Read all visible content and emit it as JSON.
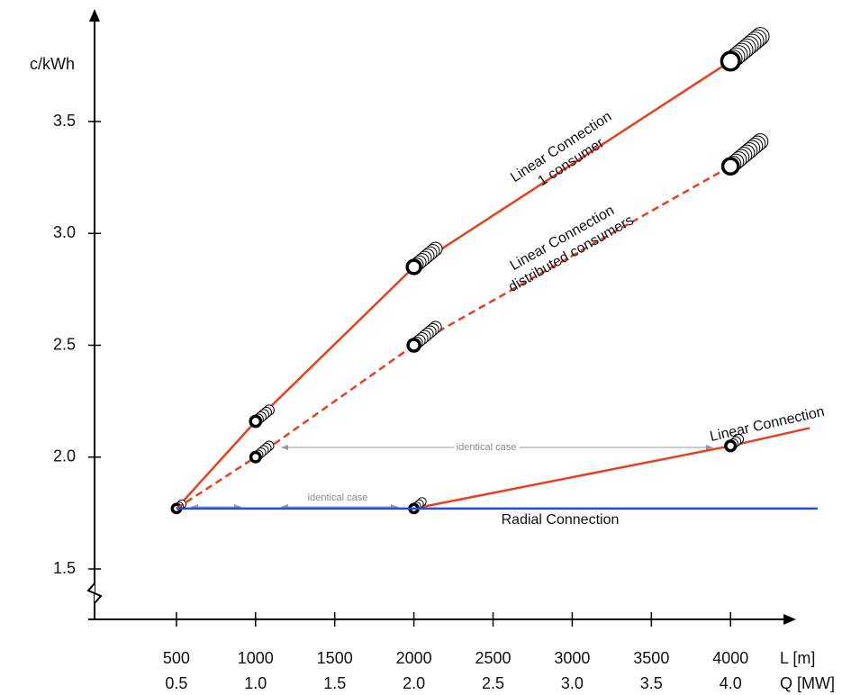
{
  "chart_data": {
    "type": "line",
    "y_label": "c/kWh",
    "x_label": "L  [m]",
    "x2_label": "Q [MW]",
    "xlim": [
      0,
      4600
    ],
    "ylim": [
      1.3,
      4.0
    ],
    "xticks": [
      500,
      1000,
      1500,
      2000,
      2500,
      3000,
      3500,
      4000
    ],
    "x2lim": [
      0,
      4.6
    ],
    "x2ticks": [
      0.5,
      {
        "value": 1,
        "label": "1.0"
      },
      1.5,
      {
        "value": 2,
        "label": "2.0"
      },
      2.5,
      {
        "value": 3,
        "label": "3.0"
      },
      3.5,
      {
        "value": 4,
        "label": "4.0"
      }
    ],
    "yticks": [
      1.5,
      {
        "value": 2,
        "label": "2.0"
      },
      2.5,
      {
        "value": 3,
        "label": "3.0"
      },
      3.5
    ],
    "series": [
      {
        "name_lines": [
          "Linear Connection",
          "1 consumer"
        ],
        "color": "#e8401c",
        "dash": false,
        "x": [
          500,
          1000,
          2000,
          4000
        ],
        "values": [
          1.77,
          2.16,
          2.85,
          3.77
        ]
      },
      {
        "name_lines": [
          "Linear Connection",
          "distributed consumers"
        ],
        "color": "#e8401c",
        "dash": true,
        "x": [
          500,
          1000,
          2000,
          4000
        ],
        "values": [
          1.77,
          2.0,
          2.5,
          3.3
        ]
      },
      {
        "name_lines": [
          "Linear Connection"
        ],
        "color": "#e8401c",
        "dash": false,
        "x": [
          2000,
          4000,
          4500
        ],
        "values": [
          1.77,
          2.05,
          2.13
        ]
      },
      {
        "name_lines": [
          "Radial Connection"
        ],
        "color": "#1f4fd6",
        "dash": false,
        "x": [
          500,
          4550
        ],
        "values": [
          1.77,
          1.77
        ]
      }
    ],
    "annotations": [
      "identical case",
      "identical case"
    ]
  }
}
